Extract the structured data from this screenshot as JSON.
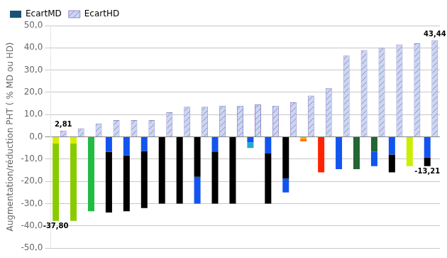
{
  "chart_data": {
    "type": "bar",
    "y_label": "Augmentation/réduction PHT ( % MD ou HD)",
    "categories": [
      null,
      null,
      null,
      null,
      null,
      null,
      null,
      null,
      null,
      null,
      null,
      null,
      null,
      null,
      null,
      null,
      null,
      null,
      null,
      null,
      null,
      null
    ],
    "stacked": true,
    "series": [
      {
        "name": "EcartMD",
        "color": "#1a5276",
        "segments": [
          {
            "values": [
              -3.024,
              -3.024,
              -33.5,
              -6.8,
              -8.375,
              -6.4,
              -30,
              -30,
              -18,
              -6.6,
              -30,
              -2.5,
              -7.5,
              -18.75,
              -1,
              -16,
              -14.5,
              -14.5,
              -6.605,
              -8,
              -13.21,
              -9.247
            ],
            "colors": [
              "#d4f000",
              "#d4f000",
              "#22bb44",
              "#1155ee",
              "#1155ee",
              "#1155ee",
              "#000000",
              "#000000",
              "#000000",
              "#1155ee",
              "#000000",
              "#1155ee",
              "#1155ee",
              "#000000",
              "#ffaa00",
              "#ff2200",
              "#1155ee",
              "#226633",
              "#226633",
              "#1155ee",
              "#ccee00",
              "#1155ee"
            ]
          },
          {
            "values": [
              -34.776,
              -34.776,
              0,
              -27.2,
              -25.125,
              -25.6,
              0,
              0,
              -12,
              -23.4,
              0,
              -2.5,
              -22.5,
              -6.25,
              -1,
              0,
              0,
              0,
              -6.605,
              -8,
              0,
              -3.963
            ],
            "colors": [
              "#88cc00",
              "#88cc00",
              "#22bb44",
              "#000000",
              "#000000",
              "#000000",
              "#000000",
              "#000000",
              "#1155ee",
              "#000000",
              "#000000",
              "#22aacc",
              "#000000",
              "#1155ee",
              "#ff6600",
              "#ff2200",
              "#1155ee",
              "#226633",
              "#1155ee",
              "#000000",
              "#ccee00",
              "#000000"
            ]
          }
        ]
      },
      {
        "name": "EcartHD",
        "color": "#c8d8f0",
        "values": [
          2.81,
          3.8,
          6.0,
          7.5,
          7.5,
          7.5,
          11.0,
          13.5,
          13.5,
          14.0,
          14.0,
          14.5,
          14.0,
          15.5,
          18.5,
          22.0,
          36.5,
          39.0,
          40.0,
          41.5,
          42.0,
          43.44
        ]
      }
    ],
    "annotations": [
      {
        "text": "2,81",
        "series": "EcartHD",
        "index": 0,
        "value": 2.81
      },
      {
        "text": "-37,80",
        "series": "EcartMD",
        "index": 0,
        "value": -37.8
      },
      {
        "text": "43,44",
        "series": "EcartHD",
        "index": 21,
        "value": 43.44
      },
      {
        "text": "-13,21",
        "series": "EcartMD",
        "index": 21,
        "value": -13.21
      }
    ],
    "ylim": [
      -50,
      50
    ],
    "yticks": [
      {
        "value": -50,
        "label": "-50,0"
      },
      {
        "value": -40,
        "label": "-40,0"
      },
      {
        "value": -30,
        "label": "-30,0"
      },
      {
        "value": -20,
        "label": "-20,0"
      },
      {
        "value": -10,
        "label": "-10,0"
      },
      {
        "value": 0,
        "label": "0,0"
      },
      {
        "value": 10,
        "label": "10,0"
      },
      {
        "value": 20,
        "label": "20,0"
      },
      {
        "value": 30,
        "label": "30,0"
      },
      {
        "value": 40,
        "label": "40,0"
      },
      {
        "value": 50,
        "label": "50,0"
      }
    ],
    "grid": true,
    "legend": "upper left",
    "tick_labels": "y"
  }
}
